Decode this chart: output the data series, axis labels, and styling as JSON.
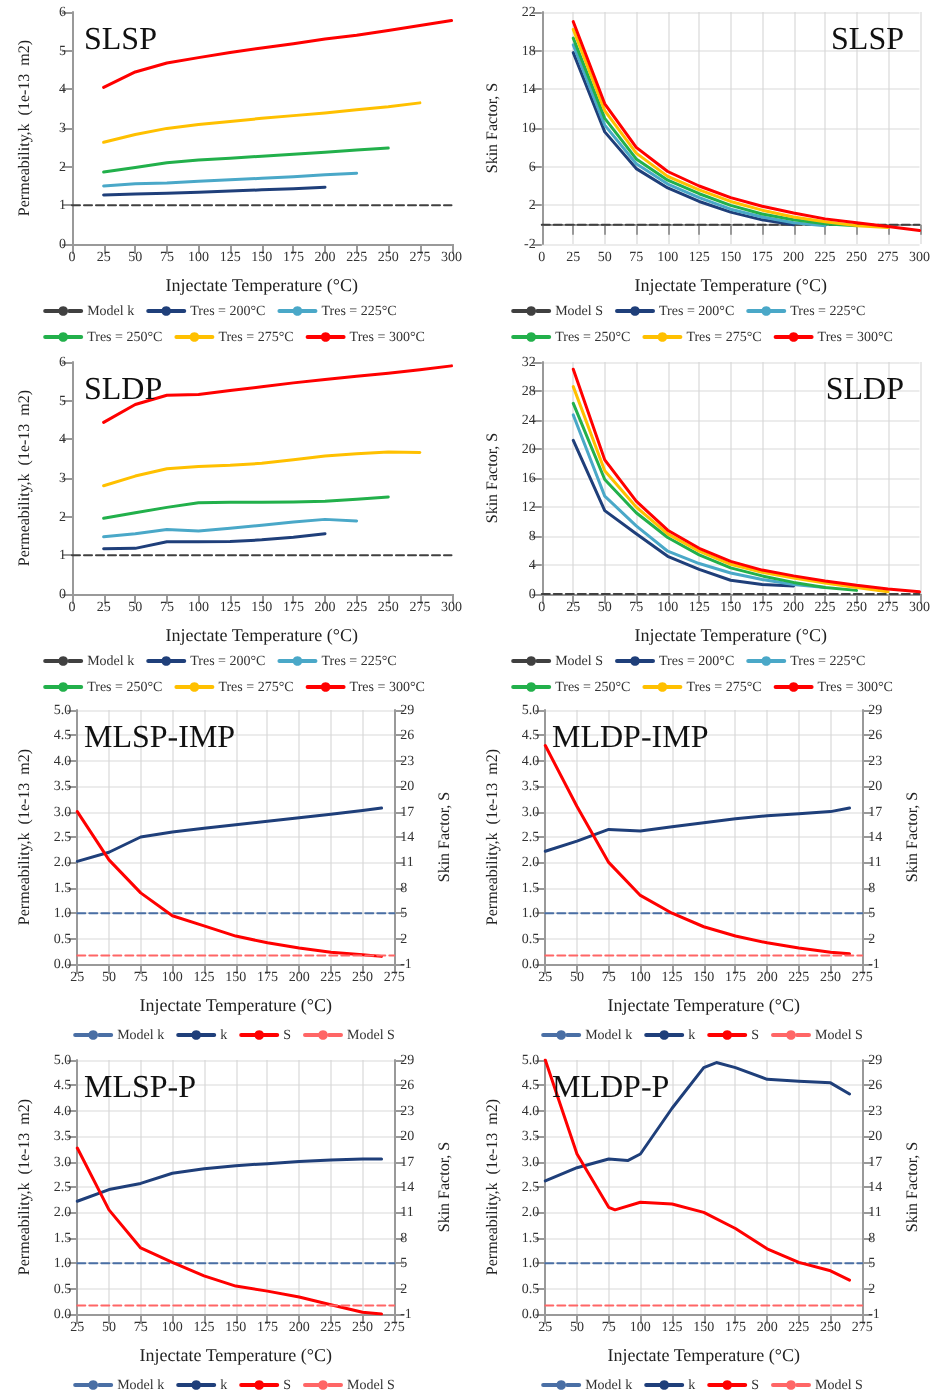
{
  "chart_data": [
    {
      "type": "line",
      "title": "SLSP",
      "xlabel": "Injectate Temperature (°C)",
      "ylabel": "Permeability,k  (1e-13  m2)",
      "xlim": [
        0,
        300
      ],
      "xticks": [
        0,
        25,
        50,
        75,
        100,
        125,
        150,
        175,
        200,
        225,
        250,
        275,
        300
      ],
      "ylim": [
        0,
        6
      ],
      "yticks": [
        0,
        1,
        2,
        3,
        4,
        5,
        6
      ],
      "grid": false,
      "legend": "bottom",
      "marker": "none",
      "line_style": "solid",
      "series": [
        {
          "name": "Model k",
          "color": "#404040",
          "line_style": "dashed",
          "x": [
            0,
            300
          ],
          "values": [
            1,
            1
          ]
        },
        {
          "name": "Tres = 200°C",
          "color": "#1f3f7a",
          "x": [
            25,
            50,
            75,
            100,
            125,
            150,
            175,
            200
          ],
          "values": [
            1.27,
            1.29,
            1.31,
            1.34,
            1.37,
            1.4,
            1.43,
            1.47
          ]
        },
        {
          "name": "Tres = 225°C",
          "color": "#4aa8c8",
          "x": [
            25,
            50,
            75,
            100,
            125,
            150,
            175,
            200,
            225
          ],
          "values": [
            1.5,
            1.56,
            1.58,
            1.62,
            1.66,
            1.7,
            1.74,
            1.79,
            1.83
          ]
        },
        {
          "name": "Tres = 250°C",
          "color": "#22b04b",
          "x": [
            25,
            50,
            75,
            100,
            125,
            150,
            175,
            200,
            225,
            250
          ],
          "values": [
            1.86,
            1.98,
            2.1,
            2.17,
            2.22,
            2.27,
            2.32,
            2.37,
            2.43,
            2.48
          ]
        },
        {
          "name": "Tres = 275°C",
          "color": "#ffc000",
          "x": [
            25,
            50,
            75,
            100,
            125,
            150,
            175,
            200,
            225,
            250,
            275
          ],
          "values": [
            2.63,
            2.83,
            2.99,
            3.09,
            3.17,
            3.25,
            3.32,
            3.39,
            3.47,
            3.55,
            3.65
          ]
        },
        {
          "name": "Tres = 300°C",
          "color": "#ff0000",
          "x": [
            25,
            50,
            75,
            100,
            125,
            150,
            175,
            200,
            225,
            250,
            275,
            300
          ],
          "values": [
            4.05,
            4.45,
            4.68,
            4.82,
            4.95,
            5.07,
            5.18,
            5.3,
            5.4,
            5.52,
            5.65,
            5.78
          ]
        }
      ]
    },
    {
      "type": "line",
      "title": "SLSP",
      "xlabel": "Injectate Temperature (°C)",
      "ylabel": "Skin Factor, S",
      "xlim": [
        0,
        300
      ],
      "xticks": [
        0,
        25,
        50,
        75,
        100,
        125,
        150,
        175,
        200,
        225,
        250,
        275,
        300
      ],
      "ylim": [
        -2,
        22
      ],
      "yticks": [
        -2,
        2,
        6,
        10,
        14,
        18,
        22
      ],
      "grid": true,
      "legend": "bottom",
      "marker": "none",
      "line_style": "solid",
      "series": [
        {
          "name": "Model S",
          "color": "#404040",
          "line_style": "dashed",
          "x": [
            0,
            300
          ],
          "values": [
            0,
            0
          ]
        },
        {
          "name": "Tres = 200°C",
          "color": "#1f3f7a",
          "x": [
            25,
            50,
            75,
            100,
            125,
            150,
            175,
            200
          ],
          "values": [
            17.8,
            9.6,
            5.8,
            3.8,
            2.4,
            1.3,
            0.5,
            0.0
          ]
        },
        {
          "name": "Tres = 225°C",
          "color": "#4aa8c8",
          "x": [
            25,
            50,
            75,
            100,
            125,
            150,
            175,
            200,
            225
          ],
          "values": [
            18.6,
            10.3,
            6.3,
            4.2,
            2.8,
            1.6,
            0.8,
            0.2,
            -0.1
          ]
        },
        {
          "name": "Tres = 250°C",
          "color": "#22b04b",
          "x": [
            25,
            50,
            75,
            100,
            125,
            150,
            175,
            200,
            225,
            250
          ],
          "values": [
            19.3,
            11.0,
            6.8,
            4.6,
            3.2,
            2.0,
            1.1,
            0.5,
            0.1,
            -0.1
          ]
        },
        {
          "name": "Tres = 275°C",
          "color": "#ffc000",
          "x": [
            25,
            50,
            75,
            100,
            125,
            150,
            175,
            200,
            225,
            250,
            275
          ],
          "values": [
            20.2,
            11.8,
            7.4,
            5.0,
            3.6,
            2.4,
            1.5,
            0.8,
            0.3,
            -0.1,
            -0.3
          ]
        },
        {
          "name": "Tres = 300°C",
          "color": "#ff0000",
          "x": [
            25,
            50,
            75,
            100,
            125,
            150,
            175,
            200,
            225,
            250,
            275,
            300
          ],
          "values": [
            21.0,
            12.5,
            8.0,
            5.5,
            4.0,
            2.8,
            1.9,
            1.2,
            0.6,
            0.2,
            -0.2,
            -0.6
          ]
        }
      ]
    },
    {
      "type": "line",
      "title": "SLDP",
      "xlabel": "Injectate Temperature (°C)",
      "ylabel": "Permeability,k  (1e-13  m2)",
      "xlim": [
        0,
        300
      ],
      "xticks": [
        0,
        25,
        50,
        75,
        100,
        125,
        150,
        175,
        200,
        225,
        250,
        275,
        300
      ],
      "ylim": [
        0,
        6
      ],
      "yticks": [
        0,
        1,
        2,
        3,
        4,
        5,
        6
      ],
      "grid": false,
      "legend": "bottom",
      "marker": "none",
      "line_style": "solid",
      "series": [
        {
          "name": "Model k",
          "color": "#404040",
          "line_style": "dashed",
          "x": [
            0,
            300
          ],
          "values": [
            1,
            1
          ]
        },
        {
          "name": "Tres = 200°C",
          "color": "#1f3f7a",
          "x": [
            25,
            50,
            75,
            100,
            125,
            150,
            175,
            200
          ],
          "values": [
            1.17,
            1.18,
            1.35,
            1.35,
            1.36,
            1.4,
            1.47,
            1.56
          ]
        },
        {
          "name": "Tres = 225°C",
          "color": "#4aa8c8",
          "x": [
            25,
            50,
            75,
            100,
            125,
            150,
            175,
            200,
            225
          ],
          "values": [
            1.48,
            1.56,
            1.67,
            1.63,
            1.7,
            1.78,
            1.86,
            1.93,
            1.89
          ]
        },
        {
          "name": "Tres = 250°C",
          "color": "#22b04b",
          "x": [
            25,
            50,
            75,
            100,
            125,
            150,
            175,
            200,
            225,
            250
          ],
          "values": [
            1.96,
            2.1,
            2.24,
            2.36,
            2.37,
            2.37,
            2.38,
            2.4,
            2.45,
            2.51
          ]
        },
        {
          "name": "Tres = 275°C",
          "color": "#ffc000",
          "x": [
            25,
            50,
            75,
            100,
            125,
            150,
            175,
            200,
            225,
            250,
            275
          ],
          "values": [
            2.8,
            3.05,
            3.24,
            3.3,
            3.33,
            3.38,
            3.47,
            3.57,
            3.63,
            3.67,
            3.66
          ]
        },
        {
          "name": "Tres = 300°C",
          "color": "#ff0000",
          "x": [
            25,
            50,
            75,
            100,
            125,
            150,
            175,
            200,
            225,
            250,
            275,
            300
          ],
          "values": [
            4.44,
            4.9,
            5.14,
            5.16,
            5.26,
            5.36,
            5.46,
            5.55,
            5.63,
            5.71,
            5.8,
            5.9
          ]
        }
      ]
    },
    {
      "type": "line",
      "title": "SLDP",
      "xlabel": "Injectate Temperature (°C)",
      "ylabel": "Skin Factor, S",
      "xlim": [
        0,
        300
      ],
      "xticks": [
        0,
        25,
        50,
        75,
        100,
        125,
        150,
        175,
        200,
        225,
        250,
        275,
        300
      ],
      "ylim": [
        0,
        32
      ],
      "yticks": [
        0,
        4,
        8,
        12,
        16,
        20,
        24,
        28,
        32
      ],
      "grid": true,
      "legend": "bottom",
      "marker": "none",
      "line_style": "solid",
      "series": [
        {
          "name": "Model S",
          "color": "#404040",
          "line_style": "dashed",
          "x": [
            0,
            300
          ],
          "values": [
            0,
            0
          ]
        },
        {
          "name": "Tres = 200°C",
          "color": "#1f3f7a",
          "x": [
            25,
            50,
            75,
            100,
            125,
            150,
            175,
            200
          ],
          "values": [
            21.2,
            11.5,
            8.3,
            5.2,
            3.4,
            1.9,
            1.3,
            1.1
          ]
        },
        {
          "name": "Tres = 225°C",
          "color": "#4aa8c8",
          "x": [
            25,
            50,
            75,
            100,
            125,
            150,
            175,
            200,
            225
          ],
          "values": [
            24.7,
            13.5,
            9.4,
            5.9,
            4.2,
            2.9,
            2.0,
            1.3,
            0.9
          ]
        },
        {
          "name": "Tres = 250°C",
          "color": "#22b04b",
          "x": [
            25,
            50,
            75,
            100,
            125,
            150,
            175,
            200,
            225,
            250
          ],
          "values": [
            26.3,
            15.8,
            11.2,
            7.8,
            5.4,
            3.6,
            2.5,
            1.6,
            0.9,
            0.5
          ]
        },
        {
          "name": "Tres = 275°C",
          "color": "#ffc000",
          "x": [
            25,
            50,
            75,
            100,
            125,
            150,
            175,
            200,
            225,
            250,
            275
          ],
          "values": [
            28.6,
            17.0,
            12.0,
            8.3,
            5.9,
            4.1,
            3.0,
            2.2,
            1.5,
            0.9,
            0.3
          ]
        },
        {
          "name": "Tres = 300°C",
          "color": "#ff0000",
          "x": [
            25,
            50,
            75,
            100,
            125,
            150,
            175,
            200,
            225,
            250,
            275,
            300
          ],
          "values": [
            31.0,
            18.5,
            12.8,
            8.8,
            6.3,
            4.5,
            3.3,
            2.5,
            1.8,
            1.2,
            0.7,
            0.3
          ]
        }
      ]
    },
    {
      "type": "line",
      "title": "MLSP-IMP",
      "xlabel": "Injectate Temperature (°C)",
      "ylabel": "Permeability,k  (1e-13  m2)",
      "y2label": "Skin Factor, S",
      "xlim": [
        25,
        275
      ],
      "xticks": [
        25,
        50,
        75,
        100,
        125,
        150,
        175,
        200,
        225,
        250,
        275
      ],
      "ylim": [
        0,
        5
      ],
      "yticks": [
        {
          "value": 0,
          "label": "0.0"
        },
        {
          "value": 0.5,
          "label": "0.5"
        },
        {
          "value": 1,
          "label": "1.0"
        },
        {
          "value": 1.5,
          "label": "1.5"
        },
        {
          "value": 2,
          "label": "2.0"
        },
        {
          "value": 2.5,
          "label": "2.5"
        },
        {
          "value": 3,
          "label": "3.0"
        },
        {
          "value": 3.5,
          "label": "3.5"
        },
        {
          "value": 4,
          "label": "4.0"
        },
        {
          "value": 4.5,
          "label": "4.5"
        },
        {
          "value": 5,
          "label": "5.0"
        }
      ],
      "y2lim": [
        -1,
        29
      ],
      "y2ticks": [
        -1,
        2,
        5,
        8,
        11,
        14,
        17,
        20,
        23,
        26,
        29
      ],
      "grid": true,
      "legend": "bottom",
      "marker": "none",
      "line_style": "solid",
      "series": [
        {
          "name": "Model k",
          "color": "#4a6fa5",
          "line_style": "dashed",
          "x": [
            25,
            275
          ],
          "values": [
            1,
            1
          ]
        },
        {
          "name": "k",
          "color": "#1f3f7a",
          "x": [
            25,
            50,
            75,
            100,
            125,
            150,
            175,
            200,
            225,
            250,
            265
          ],
          "values": [
            2.02,
            2.2,
            2.5,
            2.6,
            2.67,
            2.74,
            2.81,
            2.88,
            2.95,
            3.02,
            3.07
          ]
        },
        {
          "name": "S",
          "color": "#ff0000",
          "axis": "y2",
          "x": [
            25,
            50,
            75,
            100,
            125,
            150,
            175,
            200,
            225,
            250,
            265
          ],
          "values": [
            17,
            11.3,
            7.4,
            4.7,
            3.5,
            2.3,
            1.5,
            0.9,
            0.4,
            0.1,
            -0.1
          ]
        },
        {
          "name": "Model S",
          "color": "#ff6666",
          "axis": "y2",
          "line_style": "dashed",
          "x": [
            25,
            275
          ],
          "values": [
            0,
            0
          ]
        }
      ]
    },
    {
      "type": "line",
      "title": "MLDP-IMP",
      "xlabel": "Injectate Temperature (°C)",
      "ylabel": "Permeability,k  (1e-13  m2)",
      "y2label": "Skin Factor, S",
      "xlim": [
        25,
        275
      ],
      "xticks": [
        25,
        50,
        75,
        100,
        125,
        150,
        175,
        200,
        225,
        250,
        275
      ],
      "ylim": [
        0,
        5
      ],
      "yticks": [
        {
          "value": 0,
          "label": "0.0"
        },
        {
          "value": 0.5,
          "label": "0.5"
        },
        {
          "value": 1,
          "label": "1.0"
        },
        {
          "value": 1.5,
          "label": "1.5"
        },
        {
          "value": 2,
          "label": "2.0"
        },
        {
          "value": 2.5,
          "label": "2.5"
        },
        {
          "value": 3,
          "label": "3.0"
        },
        {
          "value": 3.5,
          "label": "3.5"
        },
        {
          "value": 4,
          "label": "4.0"
        },
        {
          "value": 4.5,
          "label": "4.5"
        },
        {
          "value": 5,
          "label": "5.0"
        }
      ],
      "y2lim": [
        -1,
        29
      ],
      "y2ticks": [
        -1,
        2,
        5,
        8,
        11,
        14,
        17,
        20,
        23,
        26,
        29
      ],
      "grid": true,
      "legend": "bottom",
      "marker": "none",
      "line_style": "solid",
      "series": [
        {
          "name": "Model k",
          "color": "#4a6fa5",
          "line_style": "dashed",
          "x": [
            25,
            275
          ],
          "values": [
            1,
            1
          ]
        },
        {
          "name": "k",
          "color": "#1f3f7a",
          "x": [
            25,
            50,
            75,
            100,
            125,
            150,
            175,
            200,
            225,
            250,
            265
          ],
          "values": [
            2.22,
            2.42,
            2.65,
            2.62,
            2.7,
            2.78,
            2.86,
            2.92,
            2.96,
            3.0,
            3.07
          ]
        },
        {
          "name": "S",
          "color": "#ff0000",
          "axis": "y2",
          "x": [
            25,
            50,
            75,
            100,
            125,
            150,
            175,
            200,
            225,
            250,
            265
          ],
          "values": [
            24.8,
            17.6,
            11,
            7.1,
            5,
            3.4,
            2.3,
            1.5,
            0.9,
            0.4,
            0.2
          ]
        },
        {
          "name": "Model S",
          "color": "#ff6666",
          "axis": "y2",
          "line_style": "dashed",
          "x": [
            25,
            275
          ],
          "values": [
            0,
            0
          ]
        }
      ]
    },
    {
      "type": "line",
      "title": "MLSP-P",
      "xlabel": "Injectate Temperature (°C)",
      "ylabel": "Permeability,k  (1e-13  m2)",
      "y2label": "Skin Factor, S",
      "xlim": [
        25,
        275
      ],
      "xticks": [
        25,
        50,
        75,
        100,
        125,
        150,
        175,
        200,
        225,
        250,
        275
      ],
      "ylim": [
        0,
        5
      ],
      "yticks": [
        {
          "value": 0,
          "label": "0.0"
        },
        {
          "value": 0.5,
          "label": "0.5"
        },
        {
          "value": 1,
          "label": "1.0"
        },
        {
          "value": 1.5,
          "label": "1.5"
        },
        {
          "value": 2,
          "label": "2.0"
        },
        {
          "value": 2.5,
          "label": "2.5"
        },
        {
          "value": 3,
          "label": "3.0"
        },
        {
          "value": 3.5,
          "label": "3.5"
        },
        {
          "value": 4,
          "label": "4.0"
        },
        {
          "value": 4.5,
          "label": "4.5"
        },
        {
          "value": 5,
          "label": "5.0"
        }
      ],
      "y2lim": [
        -1,
        29
      ],
      "y2ticks": [
        -1,
        2,
        5,
        8,
        11,
        14,
        17,
        20,
        23,
        26,
        29
      ],
      "grid": true,
      "legend": "bottom",
      "marker": "none",
      "line_style": "solid",
      "series": [
        {
          "name": "Model k",
          "color": "#4a6fa5",
          "line_style": "dashed",
          "x": [
            25,
            275
          ],
          "values": [
            1,
            1
          ]
        },
        {
          "name": "k",
          "color": "#1f3f7a",
          "x": [
            25,
            50,
            75,
            100,
            125,
            150,
            175,
            200,
            225,
            250,
            265
          ],
          "values": [
            2.22,
            2.45,
            2.57,
            2.77,
            2.86,
            2.92,
            2.96,
            3.0,
            3.03,
            3.05,
            3.05
          ]
        },
        {
          "name": "S",
          "color": "#ff0000",
          "axis": "y2",
          "x": [
            25,
            50,
            75,
            100,
            125,
            150,
            175,
            200,
            225,
            250,
            265
          ],
          "values": [
            18.6,
            11.3,
            6.8,
            5.1,
            3.5,
            2.3,
            1.7,
            1.0,
            0.1,
            -0.8,
            -1
          ]
        },
        {
          "name": "Model S",
          "color": "#ff6666",
          "axis": "y2",
          "line_style": "dashed",
          "x": [
            25,
            275
          ],
          "values": [
            0,
            0
          ]
        }
      ]
    },
    {
      "type": "line",
      "title": "MLDP-P",
      "xlabel": "Injectate Temperature (°C)",
      "ylabel": "Permeability,k  (1e-13  m2)",
      "y2label": "Skin Factor, S",
      "xlim": [
        25,
        275
      ],
      "xticks": [
        25,
        50,
        75,
        100,
        125,
        150,
        175,
        200,
        225,
        250,
        275
      ],
      "ylim": [
        0,
        5
      ],
      "yticks": [
        {
          "value": 0,
          "label": "0.0"
        },
        {
          "value": 0.5,
          "label": "0.5"
        },
        {
          "value": 1,
          "label": "1.0"
        },
        {
          "value": 1.5,
          "label": "1.5"
        },
        {
          "value": 2,
          "label": "2.0"
        },
        {
          "value": 2.5,
          "label": "2.5"
        },
        {
          "value": 3,
          "label": "3.0"
        },
        {
          "value": 3.5,
          "label": "3.5"
        },
        {
          "value": 4,
          "label": "4.0"
        },
        {
          "value": 4.5,
          "label": "4.5"
        },
        {
          "value": 5,
          "label": "5.0"
        }
      ],
      "y2lim": [
        -1,
        29
      ],
      "y2ticks": [
        -1,
        2,
        5,
        8,
        11,
        14,
        17,
        20,
        23,
        26,
        29
      ],
      "grid": true,
      "legend": "bottom",
      "marker": "none",
      "line_style": "solid",
      "series": [
        {
          "name": "Model k",
          "color": "#4a6fa5",
          "line_style": "dashed",
          "x": [
            25,
            275
          ],
          "values": [
            1,
            1
          ]
        },
        {
          "name": "k",
          "color": "#1f3f7a",
          "x": [
            25,
            50,
            75,
            90,
            100,
            125,
            150,
            160,
            175,
            200,
            225,
            250,
            265
          ],
          "values": [
            2.62,
            2.88,
            3.05,
            3.02,
            3.15,
            4.05,
            4.85,
            4.95,
            4.85,
            4.62,
            4.58,
            4.55,
            4.33
          ]
        },
        {
          "name": "S",
          "color": "#ff0000",
          "axis": "y2",
          "x": [
            25,
            50,
            75,
            80,
            100,
            125,
            150,
            175,
            200,
            225,
            250,
            265
          ],
          "values": [
            29,
            17.9,
            11.6,
            11.3,
            12.2,
            12.0,
            11,
            9.1,
            6.7,
            5.1,
            4.1,
            3.0
          ]
        },
        {
          "name": "Model S",
          "color": "#ff6666",
          "axis": "y2",
          "line_style": "dashed",
          "x": [
            25,
            275
          ],
          "values": [
            0,
            0
          ]
        }
      ]
    }
  ]
}
